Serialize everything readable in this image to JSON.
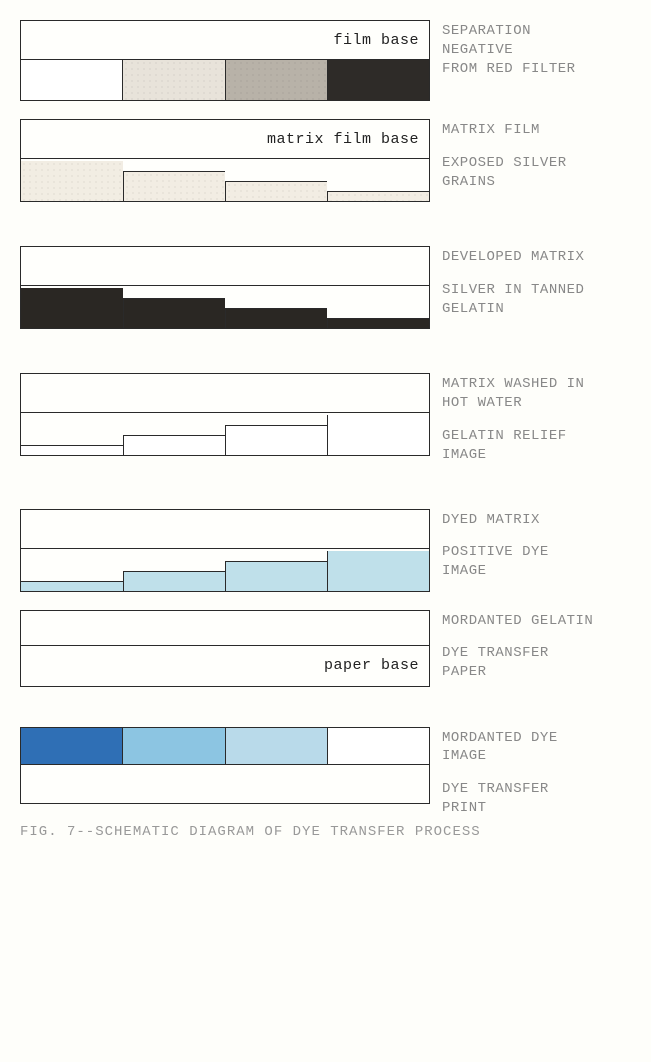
{
  "background_color": "#fefefa",
  "border_color": "#2a2a2a",
  "font_family": "Courier New",
  "label_color": "#888888",
  "diagram_width": 410,
  "panels": [
    {
      "id": "separation",
      "type": "swatches",
      "top_text": "film base",
      "swatches": [
        "#ffffff",
        "#e8e3da",
        "#b8b2a8",
        "#2e2b28"
      ],
      "label_top": "SEPARATION\nNEGATIVE\nFROM RED FILTER",
      "gap_after": 18
    },
    {
      "id": "matrix-film",
      "type": "staircase-down",
      "top_text": "matrix film base",
      "fill": "#f2ede3",
      "speckle": true,
      "heights": [
        40,
        30,
        20,
        10
      ],
      "label_top": "MATRIX FILM",
      "label_bottom": "EXPOSED SILVER\nGRAINS",
      "gap_after": 44
    },
    {
      "id": "developed-matrix",
      "type": "staircase-down",
      "top_text": "",
      "fill": "#2a2723",
      "speckle": false,
      "heights": [
        40,
        30,
        20,
        10
      ],
      "label_top": "DEVELOPED MATRIX",
      "label_bottom": "SILVER IN TANNED\nGELATIN",
      "gap_after": 44
    },
    {
      "id": "washed-matrix",
      "type": "staircase-up",
      "top_text": "",
      "fill": "#ffffff",
      "heights": [
        10,
        20,
        30,
        40
      ],
      "label_top": "MATRIX WASHED IN\nHOT WATER",
      "label_bottom": "GELATIN RELIEF\nIMAGE",
      "gap_after": 44
    },
    {
      "id": "dyed-matrix",
      "type": "staircase-up",
      "top_text": "",
      "fill": "#bfe0ea",
      "heights": [
        10,
        20,
        30,
        40
      ],
      "label_top": "DYED MATRIX",
      "label_bottom": "POSITIVE DYE\nIMAGE",
      "gap_after": 18
    },
    {
      "id": "dye-paper",
      "type": "two-layer",
      "top_text": "",
      "bottom_text": "paper base",
      "label_top": "MORDANTED GELATIN",
      "label_bottom": "DYE TRANSFER\nPAPER",
      "gap_after": 40
    },
    {
      "id": "dye-print",
      "type": "swatches-over-base",
      "swatches": [
        "#2f6fb5",
        "#8cc5e2",
        "#b9daea",
        "#ffffff"
      ],
      "label_top": "MORDANTED DYE\nIMAGE",
      "label_bottom": "DYE TRANSFER\nPRINT",
      "gap_after": 6
    }
  ],
  "caption": "FIG. 7--SCHEMATIC DIAGRAM OF DYE TRANSFER PROCESS"
}
